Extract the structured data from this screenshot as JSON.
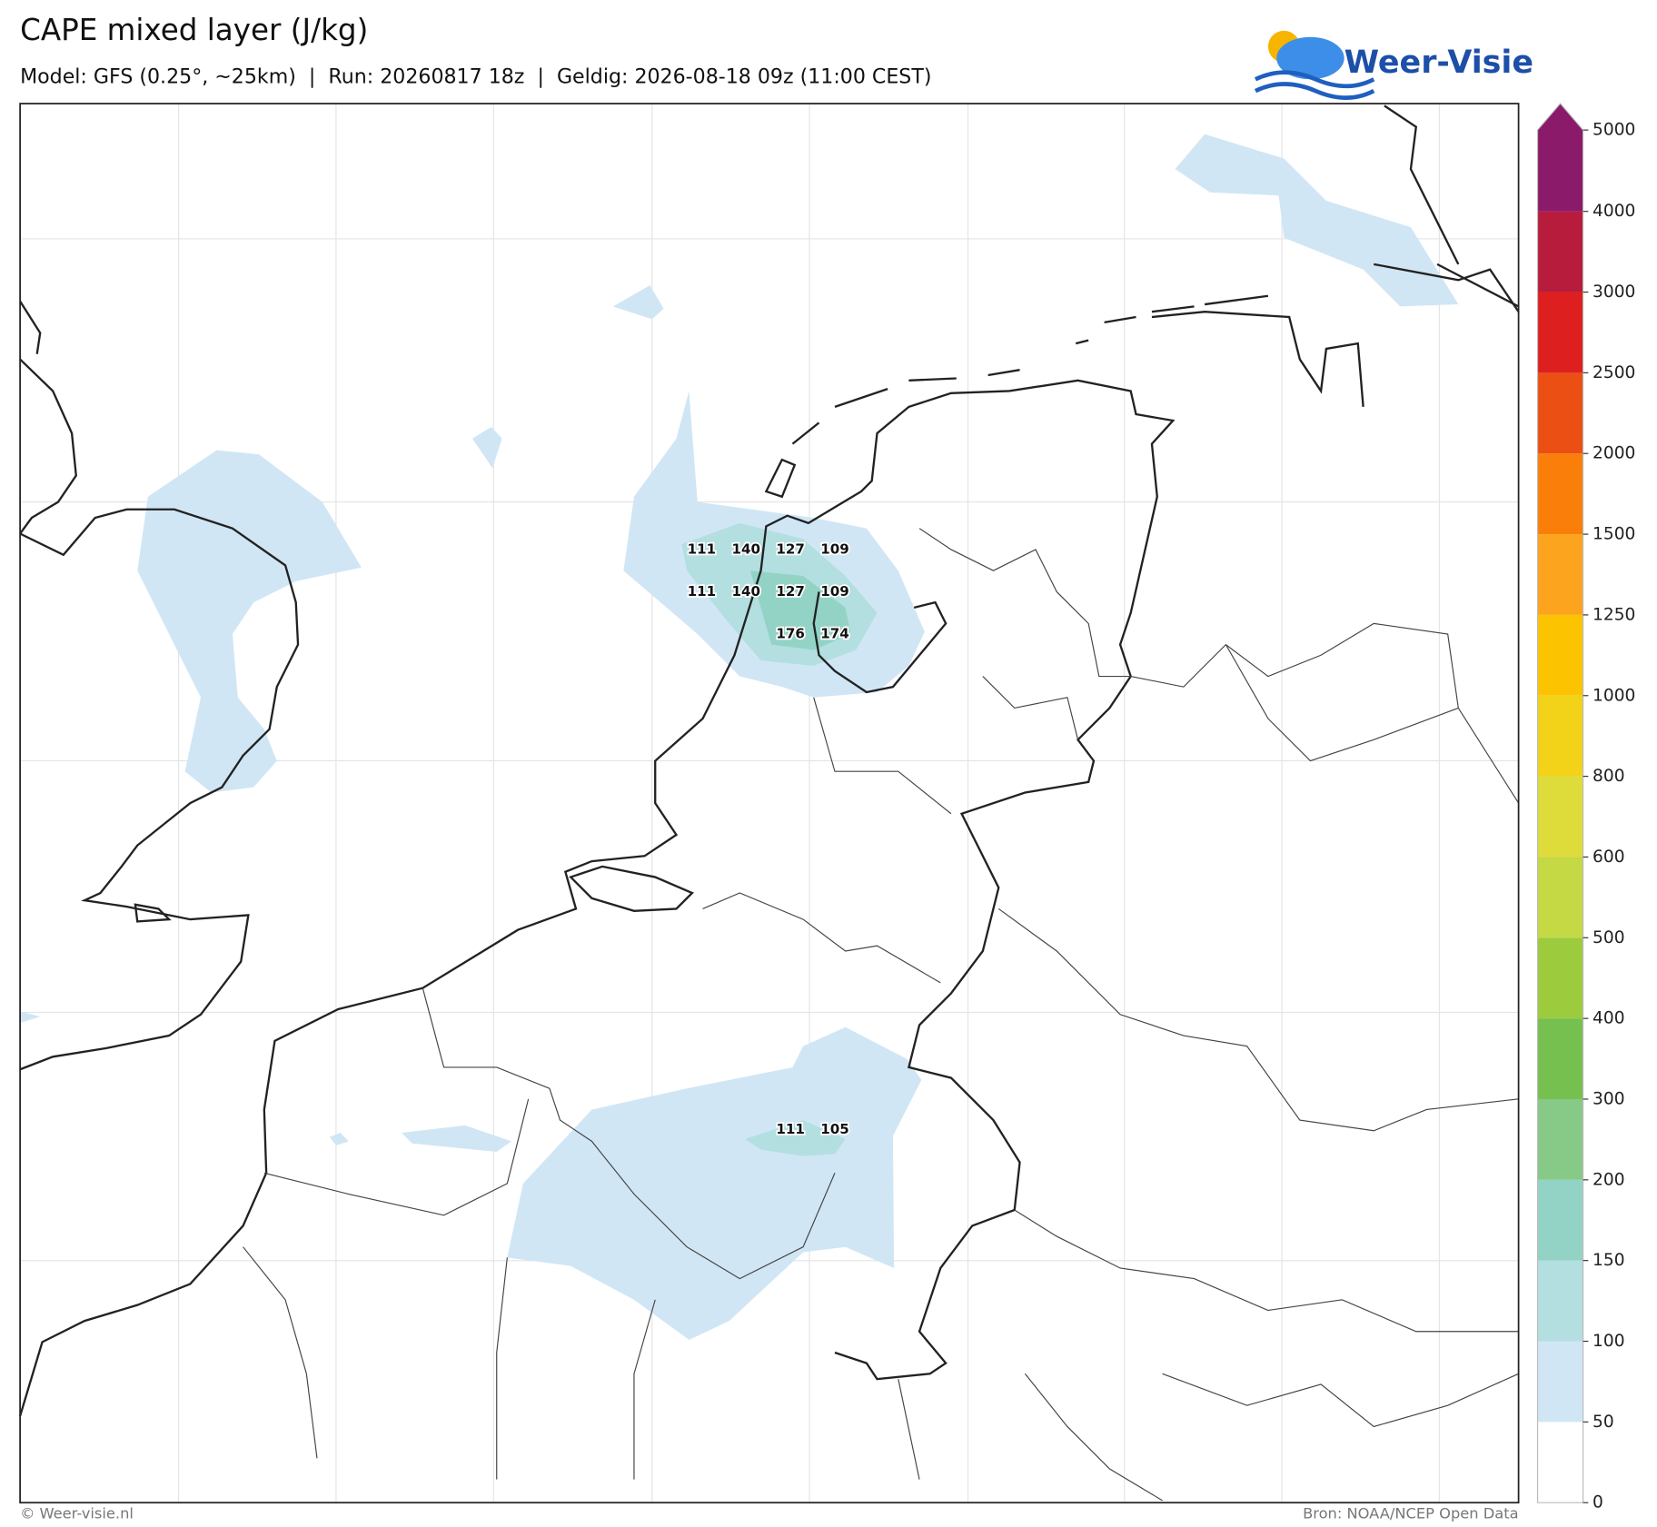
{
  "header": {
    "title": "CAPE mixed layer (J/kg)",
    "subtitle": "Model: GFS (0.25°, ~25km)  |  Run: 20260817 18z  |  Geldig: 2026-08-18 09z (11:00 CEST)",
    "logo": "Weer-Visie"
  },
  "map": {
    "labels": [
      111,
      140,
      127,
      109,
      111,
      140,
      127,
      109,
      176,
      174,
      111,
      105
    ]
  },
  "colorbar": {
    "levels": [
      0,
      50,
      100,
      150,
      200,
      300,
      400,
      500,
      600,
      800,
      1000,
      1250,
      1500,
      2000,
      2500,
      3000,
      4000,
      5000
    ],
    "colors": [
      "#ffffff",
      "#d0e6f5",
      "#b3dfe0",
      "#93d3c6",
      "#87c987",
      "#76c04f",
      "#9ccc3e",
      "#c4d944",
      "#dedc3a",
      "#f2d31a",
      "#fcc400",
      "#fca41e",
      "#f97f0a",
      "#ec4f14",
      "#dd1f1f",
      "#b81c3d",
      "#8b1a6b"
    ]
  },
  "footer": {
    "left": "© Weer-visie.nl",
    "right": "Bron: NOAA/NCEP Open Data"
  }
}
